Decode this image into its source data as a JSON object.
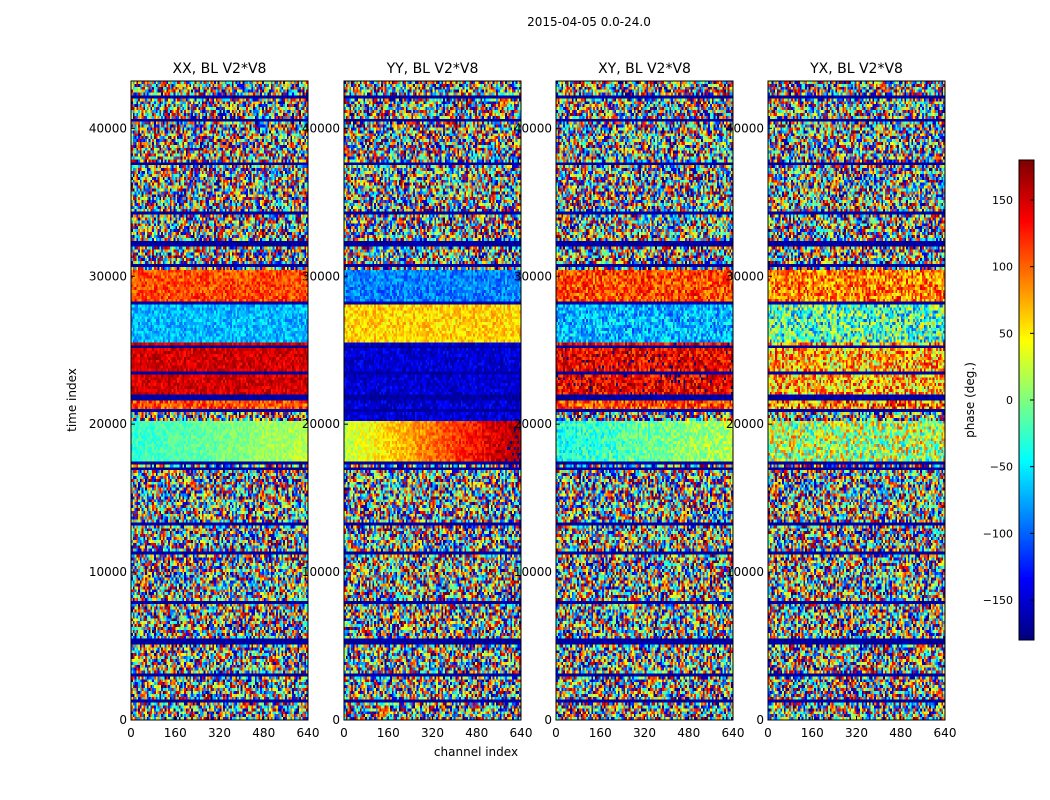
{
  "figure": {
    "suptitle": "2015-04-05 0.0-24.0"
  },
  "chart_data": {
    "type": "heatmap",
    "xlabel": "channel index",
    "ylabel": "time index",
    "x_range": [
      0,
      640
    ],
    "y_range": [
      0,
      43200
    ],
    "x_ticks": [
      "0",
      "160",
      "320",
      "480",
      "640"
    ],
    "y_ticks": [
      "0",
      "10000",
      "20000",
      "30000",
      "40000"
    ],
    "panels": [
      {
        "title": "XX, BL V2*V8",
        "bands": [
          {
            "y": [
              17300,
              20200
            ],
            "phase": -30,
            "phase_end": 20,
            "spread": 20
          },
          {
            "y": [
              20800,
              22000
            ],
            "phase": 110,
            "spread": 40
          },
          {
            "y": [
              22000,
              25500
            ],
            "phase": 150,
            "spread": 25
          },
          {
            "y": [
              25500,
              28000
            ],
            "phase": -70,
            "spread": 30
          },
          {
            "y": [
              28000,
              30500
            ],
            "phase": 110,
            "spread": 35
          }
        ]
      },
      {
        "title": "YY, BL V2*V8",
        "bands": [
          {
            "y": [
              17300,
              20200
            ],
            "phase": 20,
            "phase_end": 170,
            "spread": 25
          },
          {
            "y": [
              20200,
              22000
            ],
            "phase": -150,
            "spread": 25
          },
          {
            "y": [
              22000,
              25500
            ],
            "phase": -150,
            "spread": 25
          },
          {
            "y": [
              25500,
              28000
            ],
            "phase": 60,
            "spread": 30
          },
          {
            "y": [
              28000,
              30500
            ],
            "phase": -90,
            "spread": 30
          }
        ]
      },
      {
        "title": "XY, BL V2*V8",
        "bands": [
          {
            "y": [
              17300,
              20200
            ],
            "phase": -40,
            "phase_end": 20,
            "spread": 35
          },
          {
            "y": [
              20800,
              22000
            ],
            "phase": 110,
            "spread": 50
          },
          {
            "y": [
              22000,
              25500
            ],
            "phase": 140,
            "spread": 45
          },
          {
            "y": [
              25500,
              28000
            ],
            "phase": -70,
            "spread": 45
          },
          {
            "y": [
              28000,
              30500
            ],
            "phase": 110,
            "spread": 45
          }
        ]
      },
      {
        "title": "YX, BL V2*V8",
        "bands": [
          {
            "y": [
              17300,
              20200
            ],
            "phase": 20,
            "spread": 90
          },
          {
            "y": [
              20800,
              22000
            ],
            "phase": 90,
            "spread": 90
          },
          {
            "y": [
              22000,
              25500
            ],
            "phase": 70,
            "spread": 80
          },
          {
            "y": [
              25500,
              28000
            ],
            "phase": -20,
            "spread": 90
          },
          {
            "y": [
              28000,
              30500
            ],
            "phase": 90,
            "spread": 60
          }
        ]
      }
    ],
    "gap_rows": [
      1200,
      3100,
      5300,
      8000,
      11300,
      13200,
      17000,
      17400,
      20900,
      21800,
      23500,
      25300,
      28100,
      30700,
      32200,
      34200,
      37600,
      40500,
      42100
    ],
    "colorbar": {
      "label": "phase (deg.)",
      "range": [
        -180,
        180
      ],
      "ticks": [
        "−150",
        "−100",
        "−50",
        "0",
        "50",
        "100",
        "150"
      ],
      "tick_values": [
        -150,
        -100,
        -50,
        0,
        50,
        100,
        150
      ],
      "colormap": "jet"
    }
  }
}
